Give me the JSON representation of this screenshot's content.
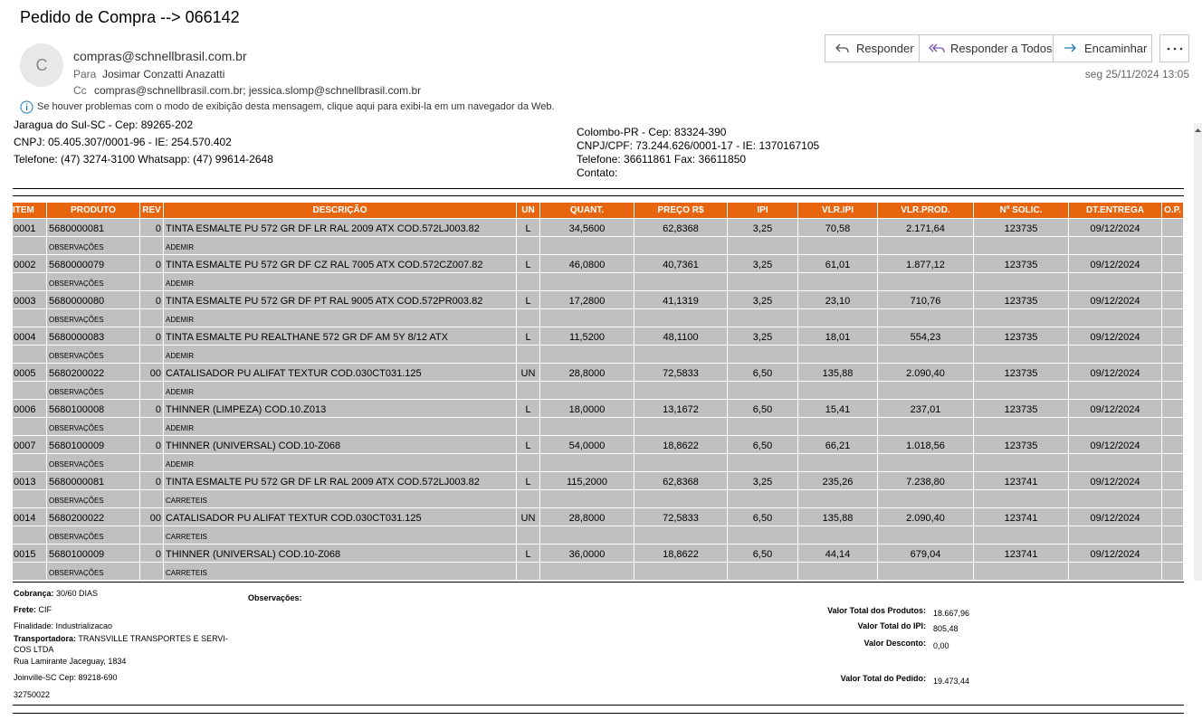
{
  "email": {
    "subject": "Pedido de Compra --> 066142",
    "avatar": "C",
    "from": "compras@schnellbrasil.com.br",
    "to_label": "Para",
    "to": "Josimar Conzatti Anazatti",
    "cc_label": "Cc",
    "cc": "compras@schnellbrasil.com.br; jessica.slomp@schnellbrasil.com.br",
    "date": "seg 25/11/2024 13:05",
    "info": "Se houver problemas com o modo de exibição desta mensagem, clique aqui para exibi-la em um navegador da Web.",
    "buttons": [
      "Responder",
      "Responder a Todos",
      "Encaminhar"
    ]
  },
  "company": {
    "lines": [
      "Jaragua do Sul-SC - Cep: 89265-202",
      "CNPJ: 05.405.307/0001-96 - IE: 254.570.402",
      "Telefone: (47) 3274-3100   Whatsapp: (47) 99614-2648"
    ]
  },
  "supplier": {
    "lines": [
      "Colombo-PR - Cep: 83324-390",
      "CNPJ/CPF: 73.244.626/0001-17 - IE: 1370167105",
      "Telefone: 36611861 Fax: 36611850",
      "Contato:"
    ]
  },
  "table": {
    "headers": [
      "ITEM",
      "PRODUTO",
      "REV",
      "DESCRIÇÃO",
      "UN",
      "QUANT.",
      "PREÇO R$",
      "IPI",
      "VLR.IPI",
      "VLR.PROD.",
      "Nº SOLIC.",
      "DT.ENTREGA",
      "O.P."
    ],
    "rows": [
      {
        "cells": [
          "0001",
          "5680000081",
          "0",
          "TINTA ESMALTE PU 572 GR DF LR RAL 2009 ATX COD.572LJ003.82",
          "L",
          "34,5600",
          "62,8368",
          "3,25",
          "70,58",
          "2.171,64",
          "123735",
          "09/12/2024"
        ],
        "obs_label": "OBSERVAÇÕES",
        "obs": "ADEMIR"
      },
      {
        "cells": [
          "0002",
          "5680000079",
          "0",
          "TINTA ESMALTE PU 572 GR DF CZ RAL 7005 ATX COD.572CZ007.82",
          "L",
          "46,0800",
          "40,7361",
          "3,25",
          "61,01",
          "1.877,12",
          "123735",
          "09/12/2024"
        ],
        "obs_label": "OBSERVAÇÕES",
        "obs": "ADEMIR"
      },
      {
        "cells": [
          "0003",
          "5680000080",
          "0",
          "TINTA ESMALTE PU 572 GR DF PT RAL 9005 ATX COD.572PR003.82",
          "L",
          "17,2800",
          "41,1319",
          "3,25",
          "23,10",
          "710,76",
          "123735",
          "09/12/2024"
        ],
        "obs_label": "OBSERVAÇÕES",
        "obs": "ADEMIR"
      },
      {
        "cells": [
          "0004",
          "5680000083",
          "0",
          "TINTA ESMALTE PU REALTHANE 572 GR DF AM 5Y 8/12 ATX",
          "L",
          "11,5200",
          "48,1100",
          "3,25",
          "18,01",
          "554,23",
          "123735",
          "09/12/2024"
        ],
        "obs_label": "OBSERVAÇÕES",
        "obs": "ADEMIR"
      },
      {
        "cells": [
          "0005",
          "5680200022",
          "00",
          "CATALISADOR PU ALIFAT TEXTUR COD.030CT031.125",
          "UN",
          "28,8000",
          "72,5833",
          "6,50",
          "135,88",
          "2.090,40",
          "123735",
          "09/12/2024"
        ],
        "obs_label": "OBSERVAÇÕES",
        "obs": "ADEMIR"
      },
      {
        "cells": [
          "0006",
          "5680100008",
          "0",
          "THINNER (LIMPEZA) COD.10.Z013",
          "L",
          "18,0000",
          "13,1672",
          "6,50",
          "15,41",
          "237,01",
          "123735",
          "09/12/2024"
        ],
        "obs_label": "OBSERVAÇÕES",
        "obs": "ADEMIR"
      },
      {
        "cells": [
          "0007",
          "5680100009",
          "0",
          "THINNER (UNIVERSAL) COD.10-Z068",
          "L",
          "54,0000",
          "18,8622",
          "6,50",
          "66,21",
          "1.018,56",
          "123735",
          "09/12/2024"
        ],
        "obs_label": "OBSERVAÇÕES",
        "obs": "ADEMIR"
      },
      {
        "cells": [
          "0013",
          "5680000081",
          "0",
          "TINTA ESMALTE PU 572 GR DF LR RAL 2009 ATX COD.572LJ003.82",
          "L",
          "115,2000",
          "62,8368",
          "3,25",
          "235,26",
          "7.238,80",
          "123741",
          "09/12/2024"
        ],
        "obs_label": "OBSERVAÇÕES",
        "obs": "CARRETEIS"
      },
      {
        "cells": [
          "0014",
          "5680200022",
          "00",
          "CATALISADOR PU ALIFAT TEXTUR COD.030CT031.125",
          "UN",
          "28,8000",
          "72,5833",
          "6,50",
          "135,88",
          "2.090,40",
          "123741",
          "09/12/2024"
        ],
        "obs_label": "OBSERVAÇÕES",
        "obs": "CARRETEIS"
      },
      {
        "cells": [
          "0015",
          "5680100009",
          "0",
          "THINNER (UNIVERSAL) COD.10-Z068",
          "L",
          "36,0000",
          "18,8622",
          "6,50",
          "44,14",
          "679,04",
          "123741",
          "09/12/2024"
        ],
        "obs_label": "OBSERVAÇÕES",
        "obs": "CARRETEIS"
      }
    ]
  },
  "footer": {
    "cobranca": {
      "label": "Cobrança:",
      "value": "30/60 DIAS"
    },
    "frete": {
      "label": "Frete:",
      "value": "CIF"
    },
    "finalidade": "Finalidade: Industrializacao",
    "transportadora": {
      "label": "Transportadora:",
      "lines": [
        "TRANSVILLE TRANSPORTES E SERVI-",
        "COS LTDA"
      ]
    },
    "address": [
      "Rua Lamirante Jaceguay, 1834",
      "Joinville-SC Cep: 89218-690",
      "32750022"
    ],
    "observacoes": "Observações:",
    "totals": [
      {
        "label": "Valor Total dos Produtos:",
        "value": "18.667,96"
      },
      {
        "label": "Valor Total do IPI:",
        "value": "805,48"
      },
      {
        "label": "Valor Desconto:",
        "value": "0,00"
      },
      {
        "label": "Valor Total do Pedido:",
        "value": "19.473,44"
      }
    ]
  }
}
